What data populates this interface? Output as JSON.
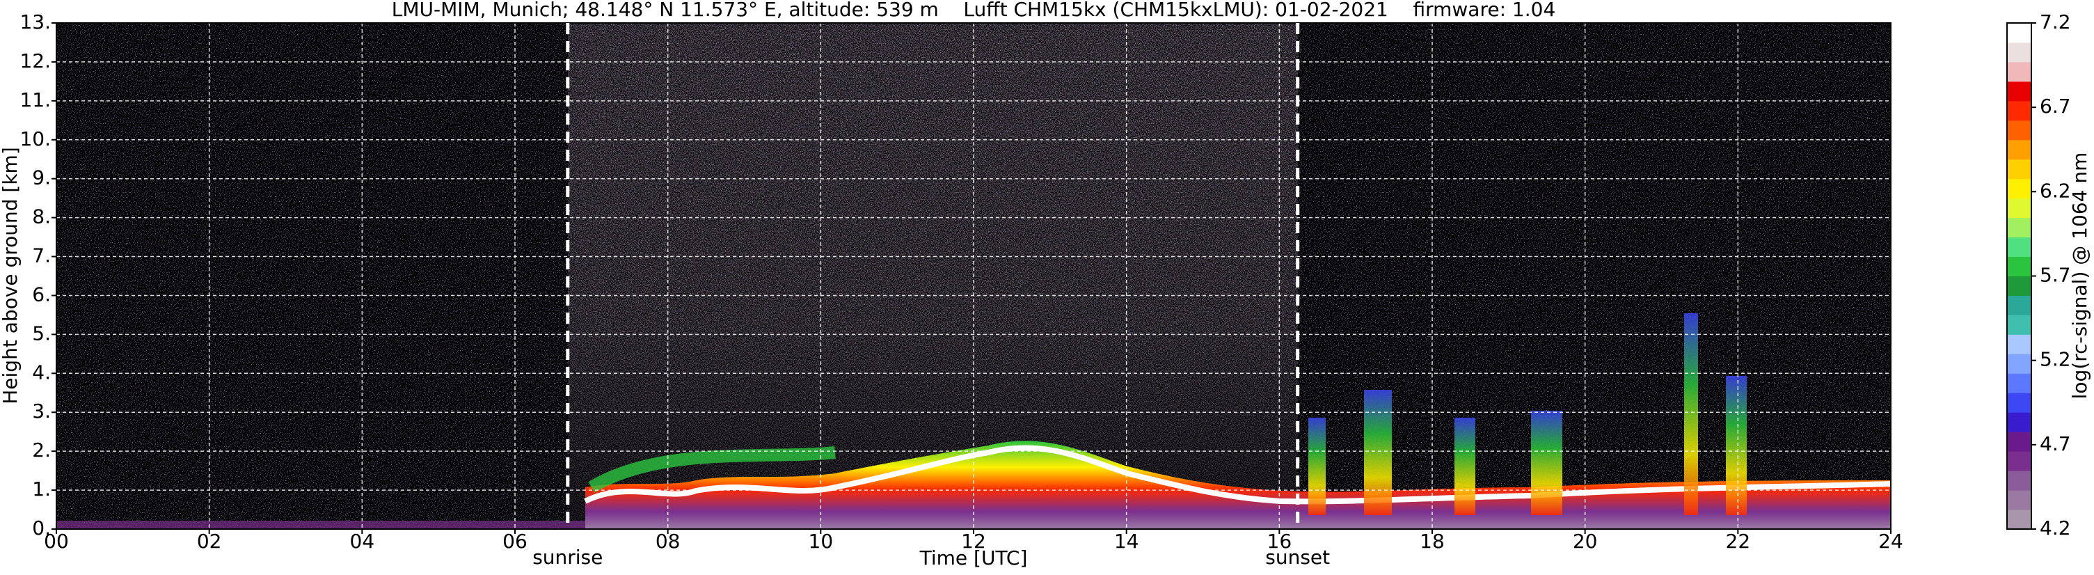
{
  "chart_data": {
    "type": "heatmap",
    "title": "LMU-MIM, Munich; 48.148° N 11.573° E, altitude: 539 m    Lufft CHM15kx (CHM15kxLMU): 01-02-2021    firmware: 1.04",
    "xlabel": "Time [UTC]",
    "ylabel": "Height above ground [km]",
    "xlim": [
      0,
      24
    ],
    "xticks": [
      {
        "value": 0,
        "label": "00"
      },
      {
        "value": 2,
        "label": "02"
      },
      {
        "value": 4,
        "label": "04"
      },
      {
        "value": 6,
        "label": "06"
      },
      {
        "value": 8,
        "label": "08"
      },
      10,
      12,
      14,
      16,
      18,
      20,
      22,
      24
    ],
    "ylim": [
      0,
      13
    ],
    "yticks": [
      {
        "value": 0,
        "label": "0."
      },
      {
        "value": 1,
        "label": "1."
      },
      {
        "value": 2,
        "label": "2."
      },
      {
        "value": 3,
        "label": "3."
      },
      {
        "value": 4,
        "label": "4."
      },
      {
        "value": 5,
        "label": "5."
      },
      {
        "value": 6,
        "label": "6."
      },
      {
        "value": 7,
        "label": "7."
      },
      {
        "value": 8,
        "label": "8."
      },
      {
        "value": 9,
        "label": "9."
      },
      {
        "value": 10,
        "label": "10."
      },
      {
        "value": 11,
        "label": "11."
      },
      {
        "value": 12,
        "label": "12."
      },
      {
        "value": 13,
        "label": "13."
      }
    ],
    "grid": true,
    "colorbar": {
      "label": "log(rc-signal) @ 1064 nm",
      "clim": [
        4.2,
        7.2
      ],
      "ticks": [
        4.2,
        4.7,
        5.2,
        5.7,
        6.2,
        6.7,
        7.2
      ],
      "colormap": [
        "#a996ab",
        "#9a7aa3",
        "#8a5c9a",
        "#7a2f8e",
        "#6a1a8a",
        "#3a1ccf",
        "#3c46f2",
        "#5b78ff",
        "#82a6ff",
        "#a8c8ff",
        "#3fbfb0",
        "#2aa89a",
        "#1e9a3a",
        "#2bc43e",
        "#50e080",
        "#a0f060",
        "#e0f830",
        "#fff000",
        "#ffd000",
        "#ffa000",
        "#ff6000",
        "#ff2a00",
        "#e80000",
        "#f0b8b8",
        "#ebe0e0",
        "#ffffff"
      ]
    },
    "annotations": [
      {
        "text": "sunrise",
        "x": 6.69
      },
      {
        "text": "sunset",
        "x": 16.24
      }
    ]
  }
}
